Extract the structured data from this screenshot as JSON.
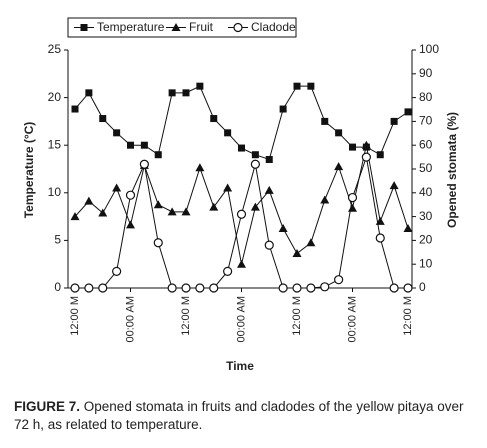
{
  "chart_data": {
    "type": "line",
    "categories": [
      "12:00 M",
      null,
      null,
      null,
      "00:00 AM",
      null,
      null,
      null,
      "12:00 M",
      null,
      null,
      null,
      "00:00 AM",
      null,
      null,
      null,
      "12:00 M",
      null,
      null,
      null,
      "00:00 AM",
      null,
      null,
      null,
      "12:00 M"
    ],
    "series": [
      {
        "name": "Temperature",
        "color": "#111111",
        "marker": "square",
        "values": [
          18.8,
          20.5,
          17.8,
          16.3,
          15,
          15,
          14,
          20.5,
          20.5,
          21.2,
          17.8,
          16.3,
          14.7,
          14,
          13.5,
          18.8,
          21.2,
          21.2,
          17.5,
          16.3,
          14.8,
          14.8,
          14,
          17.5,
          18.5
        ]
      },
      {
        "name": "Fruit",
        "color": "#111111",
        "marker": "triangle",
        "axis": "y2",
        "values": [
          30,
          36.5,
          31.5,
          42,
          26.5,
          51.5,
          35,
          32,
          32,
          50.5,
          34,
          42,
          10,
          34,
          41,
          25,
          14.5,
          19,
          37,
          51,
          33.5,
          60,
          28,
          43,
          25
        ]
      },
      {
        "name": "Cladode",
        "color": "#111111",
        "marker": "circle",
        "axis": "y2",
        "values": [
          0,
          0,
          0,
          7,
          39,
          52,
          19,
          0,
          0,
          0,
          0,
          7,
          31,
          52,
          18,
          0,
          0,
          0,
          0.5,
          3.5,
          38,
          55,
          21,
          0,
          0
        ]
      }
    ],
    "ylabel": "Temperature (°C)",
    "y2label": "Opened stomata (%)",
    "xlabel": "Time",
    "ylim": [
      0,
      25
    ],
    "yticks": [
      0,
      5,
      10,
      15,
      20,
      25
    ],
    "y2lim": [
      0,
      100
    ],
    "y2ticks": [
      0,
      10,
      20,
      30,
      40,
      50,
      60,
      70,
      80,
      90,
      100
    ],
    "legend": "top",
    "caption": {
      "label": "FIGURE 7.",
      "text": "Opened stomata in fruits and cladodes of the yellow pitaya over 72 h, as related to temperature."
    }
  }
}
